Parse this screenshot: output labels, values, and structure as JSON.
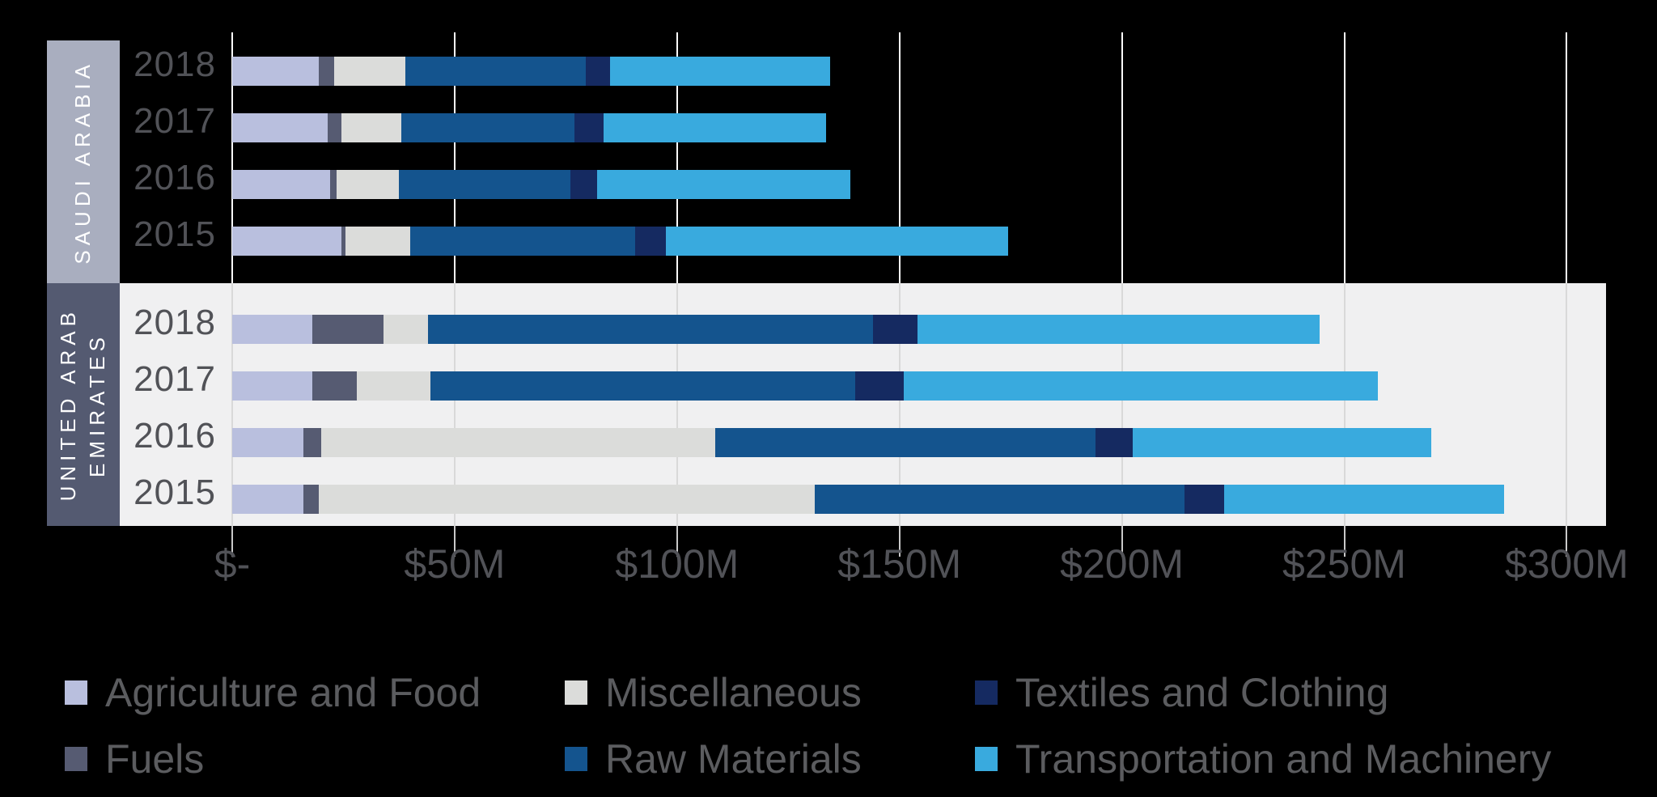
{
  "chart_data": {
    "type": "bar",
    "orientation": "horizontal",
    "stacked": true,
    "unit": "$M",
    "x_axis": {
      "tick_labels": [
        "$-",
        "$50M",
        "$100M",
        "$150M",
        "$200M",
        "$250M",
        "$300M"
      ],
      "tick_values": [
        0,
        50,
        100,
        150,
        200,
        250,
        300
      ],
      "min": 0,
      "max": 309,
      "grid": true
    },
    "categories": [
      "Agriculture and Food",
      "Fuels",
      "Miscellaneous",
      "Raw Materials",
      "Textiles and Clothing",
      "Transportation and Machinery"
    ],
    "category_colors": [
      "#b9bfde",
      "#565b72",
      "#dbdcda",
      "#14548e",
      "#152a61",
      "#39aade"
    ],
    "groups": [
      {
        "label": "SAUDI ARABIA",
        "label_lines": [
          "SAUDI ARABIA"
        ],
        "band_color": "#a9aebf",
        "panel_color": "transparent",
        "gridline_color": "#fdfdfd",
        "rows": [
          {
            "year": "2018",
            "values": [
              19.5,
              3.5,
              16.0,
              40.5,
              5.5,
              49.5
            ]
          },
          {
            "year": "2017",
            "values": [
              21.5,
              3.0,
              13.5,
              39.0,
              6.5,
              50.0
            ]
          },
          {
            "year": "2016",
            "values": [
              22.0,
              1.5,
              14.0,
              38.5,
              6.0,
              57.0
            ]
          },
          {
            "year": "2015",
            "values": [
              24.5,
              1.0,
              14.5,
              50.5,
              7.0,
              77.0
            ]
          }
        ]
      },
      {
        "label": "UNITED ARAB EMIRATES",
        "label_lines": [
          "UNITED ARAB",
          "EMIRATES"
        ],
        "band_color": "#545a71",
        "panel_color": "#f0f0f1",
        "gridline_color": "#d9d9d9",
        "rows": [
          {
            "year": "2018",
            "values": [
              18.0,
              16.0,
              10.0,
              100.0,
              10.0,
              90.5
            ]
          },
          {
            "year": "2017",
            "values": [
              18.0,
              10.0,
              16.5,
              95.5,
              11.0,
              106.5
            ]
          },
          {
            "year": "2016",
            "values": [
              16.0,
              4.0,
              88.5,
              85.5,
              8.5,
              67.0
            ]
          },
          {
            "year": "2015",
            "values": [
              16.0,
              3.5,
              111.5,
              83.0,
              9.0,
              63.0
            ]
          }
        ]
      }
    ],
    "legend": [
      {
        "label": "Agriculture and Food",
        "color": "#b9bfde"
      },
      {
        "label": "Fuels",
        "color": "#565b72"
      },
      {
        "label": "Miscellaneous",
        "color": "#dbdcda"
      },
      {
        "label": "Raw Materials",
        "color": "#14548e"
      },
      {
        "label": "Textiles and Clothing",
        "color": "#152a61"
      },
      {
        "label": "Transportation and Machinery",
        "color": "#39aade"
      }
    ],
    "legend_position": "bottom",
    "background_color": "#000000",
    "tick_stub_color": "#c9c9c9"
  }
}
